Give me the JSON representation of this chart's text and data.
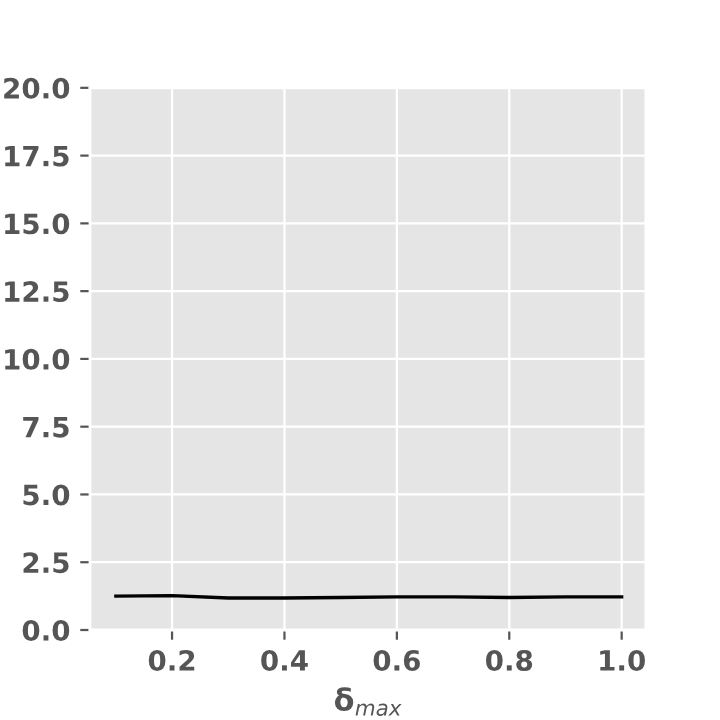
{
  "chart_data": {
    "type": "line",
    "xlabel": "δ$_{max}$",
    "x": [
      0.1,
      0.2,
      0.3,
      0.4,
      0.5,
      0.6,
      0.7,
      0.8,
      0.9,
      1.0
    ],
    "series": [
      {
        "color": "#000000",
        "values": [
          1.25,
          1.27,
          1.18,
          1.18,
          1.2,
          1.22,
          1.22,
          1.2,
          1.22,
          1.22
        ]
      }
    ],
    "xlim": [
      0.054,
      1.043
    ],
    "xticks": [
      0.2,
      0.4,
      0.6,
      0.8,
      {
        "value": 1,
        "label": "1.0"
      }
    ],
    "ylim": [
      0,
      20
    ],
    "yticks": [
      {
        "value": 0,
        "label": "0.0"
      },
      2.5,
      {
        "value": 5,
        "label": "5.0"
      },
      7.5,
      {
        "value": 10,
        "label": "10.0"
      },
      12.5,
      {
        "value": 15,
        "label": "15.0"
      },
      17.5,
      {
        "value": 20,
        "label": "20.0"
      }
    ],
    "grid": true,
    "line_style": "solid"
  }
}
